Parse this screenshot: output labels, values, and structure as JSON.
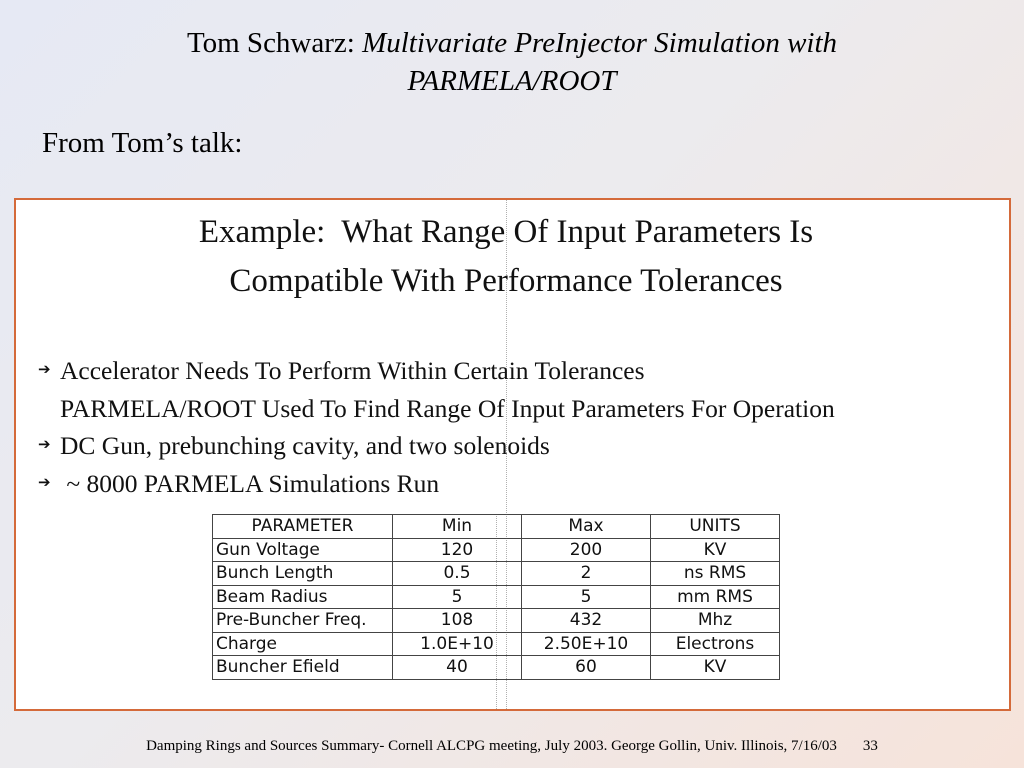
{
  "header": {
    "author": "Tom Schwarz: ",
    "title_line1": "Multivariate PreInjector Simulation with",
    "title_line2": "PARMELA/ROOT"
  },
  "intro": "From Tom’s talk:",
  "slide": {
    "title_line1": "Example:  What Range Of Input Parameters Is",
    "title_line2": "Compatible With Performance Tolerances",
    "bullets": [
      {
        "arrow": true,
        "text": "Accelerator Needs To Perform Within Certain Tolerances"
      },
      {
        "arrow": false,
        "text": "PARMELA/ROOT Used To Find Range Of Input Parameters For Operation"
      },
      {
        "arrow": true,
        "text": "DC Gun, prebunching cavity, and two solenoids"
      },
      {
        "arrow": true,
        "text": " ~ 8000 PARMELA Simulations Run"
      }
    ],
    "table": {
      "headers": [
        "PARAMETER",
        "Min",
        "Max",
        "UNITS"
      ],
      "rows": [
        [
          "Gun Voltage",
          "120",
          "200",
          "KV"
        ],
        [
          "Bunch Length",
          "0.5",
          "2",
          "ns RMS"
        ],
        [
          "Beam Radius",
          "5",
          "5",
          "mm RMS"
        ],
        [
          "Pre-Buncher Freq.",
          "108",
          "432",
          "Mhz"
        ],
        [
          "Charge",
          "1.0E+10",
          "2.50E+10",
          "Electrons"
        ],
        [
          "Buncher Efield",
          "40",
          "60",
          "KV"
        ]
      ]
    }
  },
  "footer": {
    "text": "Damping Rings and Sources Summary- Cornell ALCPG meeting, July 2003. George Gollin, Univ. Illinois, 7/16/03",
    "page": "33"
  },
  "colors": {
    "frame_border": "#d46a3a"
  }
}
